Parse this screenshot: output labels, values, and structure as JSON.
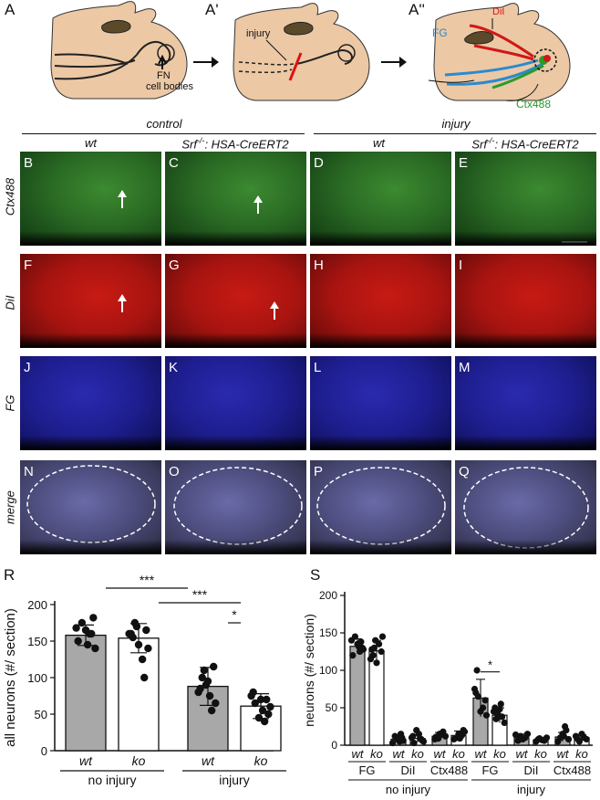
{
  "panel_labels_top": [
    "A",
    "A'",
    "A''"
  ],
  "schematic": {
    "a_label_fn": "FN",
    "a_label_cell_bodies": "cell bodies",
    "a1_label_injury": "injury",
    "a2_label_dil": "DiI",
    "a2_label_fg": "FG",
    "a2_label_ctx": "Ctx488"
  },
  "headers": {
    "control": "control",
    "injury": "injury",
    "col1": "wt",
    "col2_pre": "Srf",
    "col2_sup": "-/-",
    "col2_post": ": HSA-CreERT2",
    "col3": "wt",
    "col4_pre": "Srf",
    "col4_sup": "-/-",
    "col4_post": ": HSA-CreERT2"
  },
  "row_labels": [
    "Ctx488",
    "DiI",
    "FG",
    "merge"
  ],
  "panel_letters": [
    "B",
    "C",
    "D",
    "E",
    "F",
    "G",
    "H",
    "I",
    "J",
    "K",
    "L",
    "M",
    "N",
    "O",
    "P",
    "Q"
  ],
  "colors": {
    "green": "#2a6a24",
    "red": "#a81410",
    "blue": "#1e1e90",
    "bar_gray": "#a8a8a8",
    "fg_label": "#2a8ad0",
    "dil_label": "#d01818",
    "ctx_label": "#2a9a2a"
  },
  "chart_data": [
    {
      "panel": "R",
      "type": "bar",
      "ylabel": "all neurons (#/ section)",
      "ylim": [
        0,
        200
      ],
      "yticks": [
        "0",
        "50",
        "100",
        "150",
        "200"
      ],
      "categories": [
        "wt",
        "ko",
        "wt",
        "ko"
      ],
      "groups": [
        "no injury",
        "injury"
      ],
      "values": [
        158,
        154,
        88,
        61
      ],
      "errors": [
        14,
        20,
        26,
        17
      ],
      "fills": [
        "#a8a8a8",
        "#ffffff",
        "#a8a8a8",
        "#ffffff"
      ],
      "points": [
        [
          168,
          182,
          160,
          165,
          175,
          150,
          140,
          160,
          145
        ],
        [
          170,
          155,
          160,
          165,
          125,
          145,
          175,
          160,
          140,
          100
        ],
        [
          115,
          75,
          90,
          100,
          80,
          65,
          55,
          95,
          110,
          85
        ],
        [
          80,
          60,
          70,
          55,
          45,
          65,
          75,
          50,
          40,
          70
        ]
      ],
      "significance": [
        {
          "from": 0,
          "to": 2,
          "label": "***"
        },
        {
          "from": 1,
          "to": 3,
          "label": "***"
        },
        {
          "from": 2,
          "to": 3,
          "label": "*"
        }
      ]
    },
    {
      "panel": "S",
      "type": "bar",
      "ylabel": "neurons (#/ section)",
      "ylim": [
        0,
        200
      ],
      "yticks": [
        "0",
        "50",
        "100",
        "150",
        "200"
      ],
      "categories": [
        "wt",
        "ko",
        "wt",
        "ko",
        "wt",
        "ko",
        "wt",
        "ko",
        "wt",
        "ko",
        "wt",
        "ko"
      ],
      "subgroups": [
        "FG",
        "DiI",
        "Ctx488",
        "FG",
        "DiI",
        "Ctx488"
      ],
      "groups": [
        "no injury",
        "injury"
      ],
      "values": [
        132,
        126,
        8,
        9,
        12,
        13,
        63,
        40,
        10,
        7,
        11,
        10
      ],
      "errors": [
        10,
        14,
        4,
        5,
        5,
        6,
        25,
        10,
        5,
        3,
        6,
        4
      ],
      "fills": [
        "#a8a8a8",
        "#ffffff",
        "#a8a8a8",
        "#ffffff",
        "#a8a8a8",
        "#ffffff",
        "#a8a8a8",
        "#ffffff",
        "#a8a8a8",
        "#ffffff",
        "#a8a8a8",
        "#ffffff"
      ],
      "points": [
        [
          140,
          130,
          125,
          135,
          145,
          120,
          128,
          138,
          132
        ],
        [
          140,
          120,
          115,
          125,
          135,
          110,
          130,
          128,
          145
        ],
        [
          10,
          5,
          8,
          12,
          3,
          6,
          15,
          9
        ],
        [
          12,
          5,
          8,
          15,
          20,
          3,
          10,
          6,
          9
        ],
        [
          15,
          10,
          8,
          12,
          18,
          14,
          9,
          11
        ],
        [
          20,
          12,
          15,
          10,
          8,
          18,
          14,
          9
        ],
        [
          100,
          75,
          60,
          50,
          45,
          65,
          70,
          40
        ],
        [
          55,
          40,
          35,
          45,
          30,
          38,
          48,
          42,
          50
        ],
        [
          15,
          10,
          8,
          12,
          6,
          14
        ],
        [
          8,
          5,
          10,
          6,
          7,
          9
        ],
        [
          25,
          15,
          10,
          5,
          8,
          20,
          12
        ],
        [
          12,
          8,
          10,
          15,
          5,
          9
        ]
      ],
      "significance": [
        {
          "from": 6,
          "to": 7,
          "label": "*"
        }
      ]
    }
  ],
  "chart_panel_labels": [
    "R",
    "S"
  ]
}
